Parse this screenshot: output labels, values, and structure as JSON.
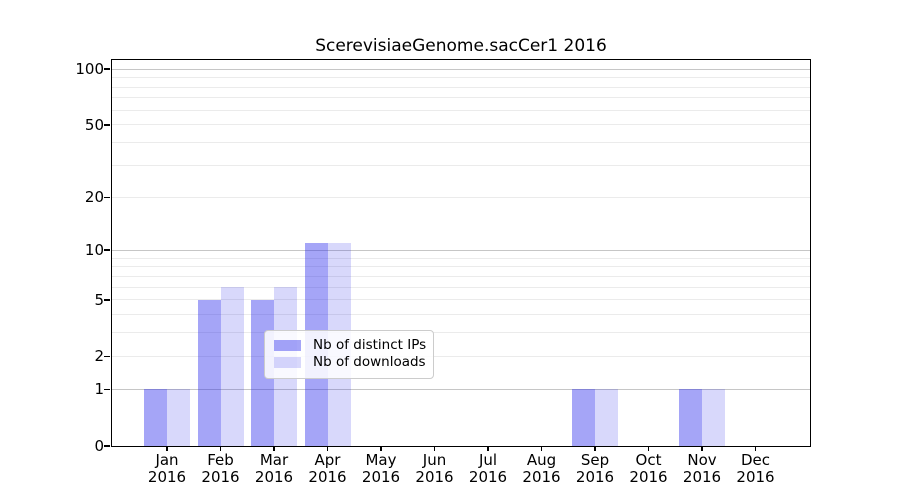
{
  "title": "ScerevisiaeGenome.sacCer1 2016",
  "colors": {
    "background": "#ffffff",
    "axis": "#000000",
    "grid_major": "#c6c6c6",
    "grid_minor": "#ebebeb",
    "bar_distinct_ips_hex": "#a4a4f6",
    "bar_downloads_hex": "#d8d8fb",
    "bar_distinct_ips_fill": "rgba(40,40,235,0.42)",
    "bar_downloads_fill": "rgba(40,40,235,0.18)",
    "legend_border": "#cccccc"
  },
  "chart_data": {
    "type": "bar",
    "title": "ScerevisiaeGenome.sacCer1 2016",
    "x_categories": [
      {
        "month": "Jan",
        "year": "2016"
      },
      {
        "month": "Feb",
        "year": "2016"
      },
      {
        "month": "Mar",
        "year": "2016"
      },
      {
        "month": "Apr",
        "year": "2016"
      },
      {
        "month": "May",
        "year": "2016"
      },
      {
        "month": "Jun",
        "year": "2016"
      },
      {
        "month": "Jul",
        "year": "2016"
      },
      {
        "month": "Aug",
        "year": "2016"
      },
      {
        "month": "Sep",
        "year": "2016"
      },
      {
        "month": "Oct",
        "year": "2016"
      },
      {
        "month": "Nov",
        "year": "2016"
      },
      {
        "month": "Dec",
        "year": "2016"
      }
    ],
    "series": [
      {
        "name": "Nb of distinct IPs",
        "key": "distinct-ips",
        "fill": "rgba(40,40,235,0.42)",
        "hex": "#a4a4f6",
        "values": [
          1,
          5,
          5,
          11,
          0,
          0,
          0,
          0,
          1,
          0,
          1,
          0
        ]
      },
      {
        "name": "Nb of downloads",
        "key": "downloads",
        "fill": "rgba(40,40,235,0.18)",
        "hex": "#d8d8fb",
        "values": [
          1,
          6,
          6,
          11,
          0,
          0,
          0,
          0,
          1,
          0,
          1,
          0
        ]
      }
    ],
    "y_axis": {
      "scale": "log1p",
      "tick_values": [
        0,
        1,
        2,
        5,
        10,
        20,
        50,
        100
      ],
      "major_grid_values": [
        1,
        10,
        100
      ],
      "minor_grid_values": [
        2,
        3,
        4,
        5,
        6,
        7,
        8,
        9,
        20,
        30,
        40,
        50,
        60,
        70,
        80,
        90
      ],
      "range": [
        0,
        112
      ]
    },
    "grid": true,
    "legend_position": "lower center"
  },
  "legend": {
    "items": [
      {
        "label": "Nb of distinct IPs"
      },
      {
        "label": "Nb of downloads"
      }
    ]
  }
}
